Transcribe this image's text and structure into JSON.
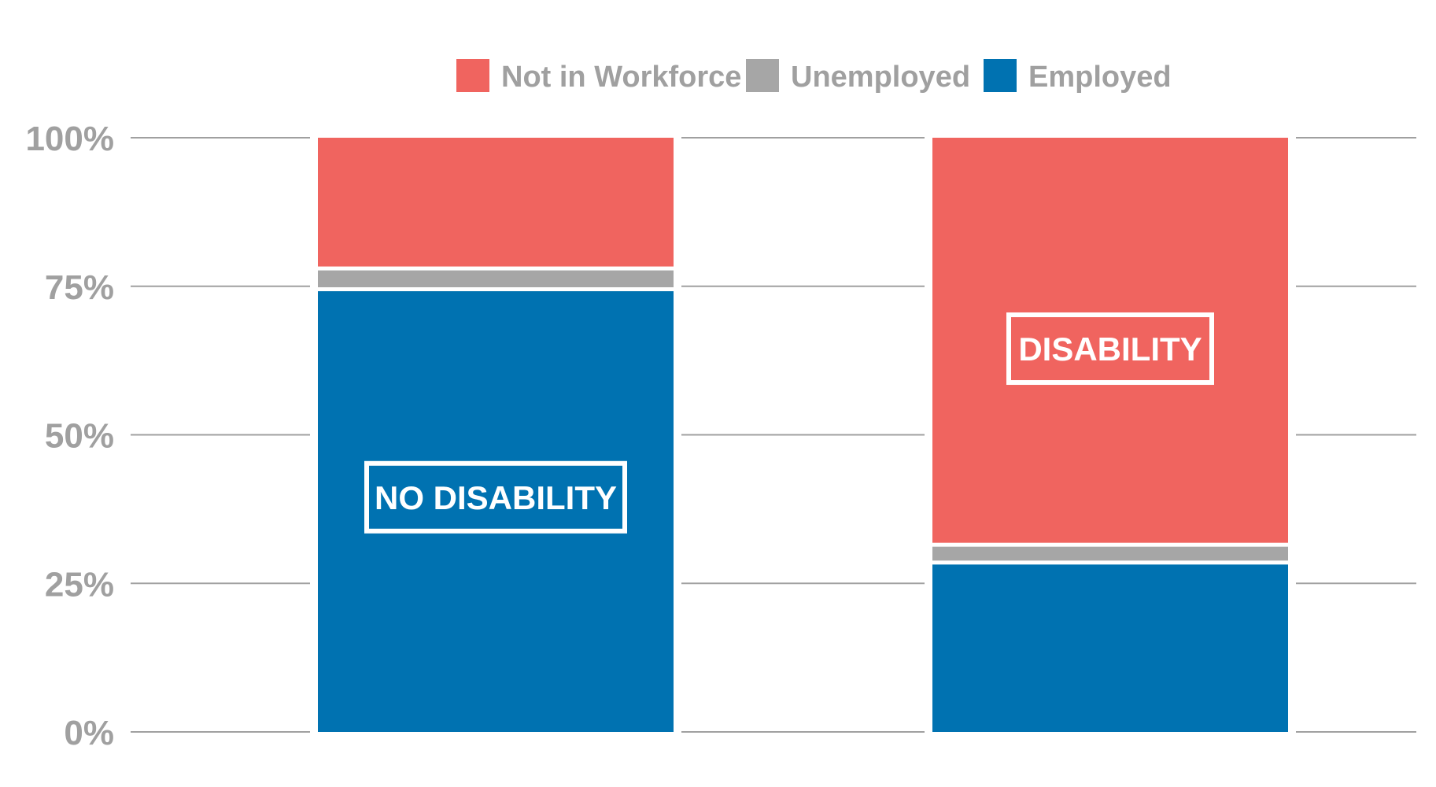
{
  "chart_data": {
    "type": "bar",
    "stacked": true,
    "categories": [
      "NO DISABILITY",
      "DISABILITY"
    ],
    "series": [
      {
        "name": "Employed",
        "values": [
          74.5,
          28.5
        ],
        "color": "#0072b1"
      },
      {
        "name": "Unemployed",
        "values": [
          3.5,
          3.0
        ],
        "color": "#a6a6a6"
      },
      {
        "name": "Not in Workforce",
        "values": [
          22.0,
          68.5
        ],
        "color": "#f0645f"
      }
    ],
    "legend_order": [
      "Not in Workforce",
      "Unemployed",
      "Employed"
    ],
    "legend_position": "top",
    "category_label_series": [
      "Employed",
      "Not in Workforce"
    ],
    "yticks": [
      0,
      25,
      50,
      75,
      100
    ],
    "ytick_labels": [
      "0%",
      "25%",
      "50%",
      "75%",
      "100%"
    ],
    "ylim": [
      0,
      100
    ],
    "grid": true,
    "title": "",
    "xlabel": "",
    "ylabel": ""
  }
}
